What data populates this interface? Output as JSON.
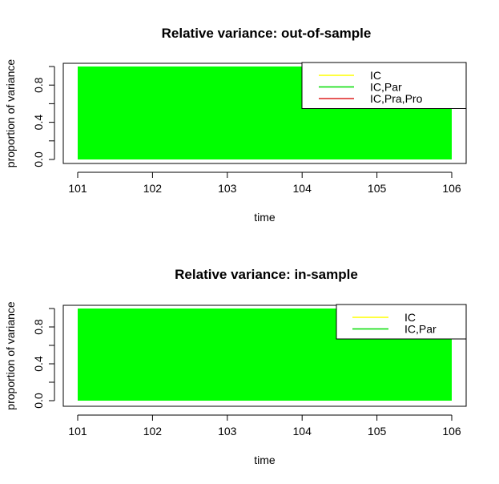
{
  "chart_data": [
    {
      "type": "area",
      "title": "Relative variance: out-of-sample",
      "xlabel": "time",
      "ylabel": "proportion of variance",
      "x": [
        101,
        102,
        103,
        104,
        105,
        106
      ],
      "xlim": [
        101,
        106
      ],
      "ylim": [
        0,
        1
      ],
      "xticks": [
        "101",
        "102",
        "103",
        "104",
        "105",
        "106"
      ],
      "yticks": [
        "0.0",
        "0.4",
        "0.8"
      ],
      "grid": false,
      "legend_position": "top-right",
      "series": [
        {
          "name": "IC",
          "color": "#ffff00",
          "values": [
            0,
            0,
            0,
            0,
            0,
            0
          ]
        },
        {
          "name": "IC,Par",
          "color": "#00ff00",
          "values": [
            1,
            1,
            1,
            1,
            1,
            1
          ]
        },
        {
          "name": "IC,Pra,Pro",
          "color": "#ff0000",
          "values": [
            0,
            0,
            0,
            0,
            0,
            0
          ]
        }
      ]
    },
    {
      "type": "area",
      "title": "Relative variance: in-sample",
      "xlabel": "time",
      "ylabel": "proportion of variance",
      "x": [
        101,
        102,
        103,
        104,
        105,
        106
      ],
      "xlim": [
        101,
        106
      ],
      "ylim": [
        0,
        1
      ],
      "xticks": [
        "101",
        "102",
        "103",
        "104",
        "105",
        "106"
      ],
      "yticks": [
        "0.0",
        "0.4",
        "0.8"
      ],
      "grid": false,
      "legend_position": "top-right",
      "series": [
        {
          "name": "IC",
          "color": "#ffff00",
          "values": [
            0,
            0,
            0,
            0,
            0,
            0
          ]
        },
        {
          "name": "IC,Par",
          "color": "#00ff00",
          "values": [
            1,
            1,
            1,
            1,
            1,
            1
          ]
        }
      ]
    }
  ]
}
